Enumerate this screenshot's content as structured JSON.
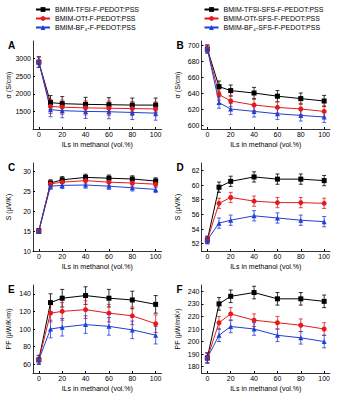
{
  "chart_data": [
    {
      "type": "line",
      "title": "A",
      "x_label": "ILs in methanol (vol.%)",
      "y_label": "σ (S/cm)",
      "x": [
        0,
        10,
        20,
        40,
        60,
        80,
        100
      ],
      "xlim": [
        -5,
        105
      ],
      "xticks": [
        0,
        20,
        40,
        60,
        80,
        100
      ],
      "ylim": [
        1000,
        3500
      ],
      "yticks": [
        1500,
        2000,
        2500,
        3000
      ],
      "grid": false,
      "series": [
        {
          "name": "BMIM-TFSI-F-PEDOT:PSS",
          "color": "#000000",
          "marker": "square",
          "line_style": "solid",
          "values": [
            2900,
            1750,
            1720,
            1700,
            1690,
            1680,
            1680
          ],
          "errors": [
            150,
            200,
            200,
            200,
            200,
            200,
            200
          ]
        },
        {
          "name": "BMIM-OTf-F-PEDOT:PSS",
          "color": "#e41a1c",
          "marker": "circle",
          "line_style": "solid",
          "values": [
            2900,
            1640,
            1620,
            1600,
            1590,
            1580,
            1570
          ],
          "errors": [
            150,
            200,
            200,
            200,
            200,
            200,
            200
          ]
        },
        {
          "name": "BMIM-BF₄-F-PEDOT:PSS",
          "color": "#1f3fd6",
          "marker": "triangle",
          "line_style": "solid",
          "values": [
            2900,
            1550,
            1520,
            1500,
            1490,
            1470,
            1450
          ],
          "errors": [
            150,
            200,
            200,
            200,
            200,
            200,
            200
          ]
        }
      ]
    },
    {
      "type": "line",
      "title": "B",
      "x_label": "ILs in methanol (vol.%)",
      "y_label": "σ (S/cm)",
      "x": [
        0,
        10,
        20,
        40,
        60,
        80,
        100
      ],
      "xlim": [
        -5,
        105
      ],
      "xticks": [
        0,
        20,
        40,
        60,
        80,
        100
      ],
      "ylim": [
        595,
        705
      ],
      "yticks": [
        600,
        620,
        640,
        660,
        680,
        700
      ],
      "grid": false,
      "series": [
        {
          "name": "BMIM-TFSI-SFS-F-PEDOT:PSS",
          "color": "#000000",
          "marker": "square",
          "line_style": "solid",
          "values": [
            695,
            648,
            643,
            640,
            636,
            633,
            630
          ],
          "errors": [
            5,
            7,
            7,
            7,
            7,
            7,
            7
          ]
        },
        {
          "name": "BMIM-OTf-SFS-F-PEDOT:PSS",
          "color": "#e41a1c",
          "marker": "circle",
          "line_style": "solid",
          "values": [
            695,
            638,
            630,
            625,
            622,
            620,
            617
          ],
          "errors": [
            5,
            7,
            7,
            7,
            7,
            7,
            7
          ]
        },
        {
          "name": "BMIM-BF₄-SFS-F-PEDOT:PSS",
          "color": "#1f3fd6",
          "marker": "triangle",
          "line_style": "solid",
          "values": [
            695,
            628,
            620,
            617,
            614,
            612,
            610
          ],
          "errors": [
            5,
            7,
            7,
            7,
            7,
            7,
            7
          ]
        }
      ]
    },
    {
      "type": "line",
      "title": "C",
      "x_label": "ILs in methanol (vol.%)",
      "y_label": "S (μV/K)",
      "x": [
        0,
        10,
        20,
        40,
        60,
        80,
        100
      ],
      "xlim": [
        -5,
        105
      ],
      "xticks": [
        0,
        20,
        40,
        60,
        80,
        100
      ],
      "ylim": [
        10,
        32
      ],
      "yticks": [
        10,
        15,
        20,
        25,
        30
      ],
      "grid": false,
      "series": [
        {
          "name": "BMIM-TFSI-F-PEDOT:PSS",
          "color": "#000000",
          "marker": "square",
          "line_style": "solid",
          "values": [
            15,
            27,
            27.8,
            28.4,
            28.2,
            28,
            27.5
          ],
          "errors": [
            0.6,
            0.8,
            0.8,
            0.8,
            0.8,
            0.8,
            0.8
          ]
        },
        {
          "name": "BMIM-OTf-F-PEDOT:PSS",
          "color": "#e41a1c",
          "marker": "circle",
          "line_style": "solid",
          "values": [
            15,
            26.8,
            27.2,
            27.6,
            27.2,
            27,
            26.7
          ],
          "errors": [
            0.6,
            0.8,
            0.8,
            0.8,
            0.8,
            0.8,
            0.8
          ]
        },
        {
          "name": "BMIM-BF₄-F-PEDOT:PSS",
          "color": "#1f3fd6",
          "marker": "triangle",
          "line_style": "solid",
          "values": [
            15,
            26.2,
            26.4,
            26.5,
            26.2,
            25.8,
            25.4
          ],
          "errors": [
            0.6,
            0.8,
            0.8,
            0.8,
            0.8,
            0.8,
            0.8
          ]
        }
      ]
    },
    {
      "type": "line",
      "title": "D",
      "x_label": "ILs in methanol (vol.%)",
      "y_label": "S (μV/K)",
      "x": [
        0,
        10,
        20,
        40,
        60,
        80,
        100
      ],
      "xlim": [
        -5,
        105
      ],
      "xticks": [
        0,
        20,
        40,
        60,
        80,
        100
      ],
      "ylim": [
        51,
        63
      ],
      "yticks": [
        52,
        54,
        56,
        58,
        60,
        62
      ],
      "grid": false,
      "series": [
        {
          "name": "BMIM-TFSI-SFS-F-PEDOT:PSS",
          "color": "#000000",
          "marker": "square",
          "line_style": "solid",
          "values": [
            52.5,
            59.7,
            60.5,
            61.1,
            60.8,
            60.8,
            60.6
          ],
          "errors": [
            0.5,
            0.7,
            0.7,
            0.7,
            0.7,
            0.7,
            0.7
          ]
        },
        {
          "name": "BMIM-OTf-SFS-F-PEDOT:PSS",
          "color": "#e41a1c",
          "marker": "circle",
          "line_style": "solid",
          "values": [
            52.5,
            57.5,
            58.3,
            57.8,
            57.6,
            57.6,
            57.5
          ],
          "errors": [
            0.5,
            0.7,
            0.7,
            0.7,
            0.7,
            0.7,
            0.7
          ]
        },
        {
          "name": "BMIM-BF₄-SFS-F-PEDOT:PSS",
          "color": "#1f3fd6",
          "marker": "triangle",
          "line_style": "solid",
          "values": [
            52.5,
            54.8,
            55.2,
            55.8,
            55.5,
            55.2,
            55
          ],
          "errors": [
            0.5,
            0.7,
            0.7,
            0.7,
            0.7,
            0.7,
            0.7
          ]
        }
      ]
    },
    {
      "type": "line",
      "title": "E",
      "x_label": "ILs in methanol (vol.%)",
      "y_label": "PF (μW/K²m)",
      "x": [
        0,
        10,
        20,
        40,
        60,
        80,
        100
      ],
      "xlim": [
        -5,
        105
      ],
      "xticks": [
        0,
        20,
        40,
        60,
        80,
        100
      ],
      "ylim": [
        50,
        150
      ],
      "yticks": [
        60,
        80,
        100,
        120,
        140
      ],
      "grid": false,
      "series": [
        {
          "name": "BMIM-TFSI-F-PEDOT:PSS",
          "color": "#000000",
          "marker": "square",
          "line_style": "solid",
          "values": [
            65,
            130,
            135,
            138,
            135,
            133,
            128
          ],
          "errors": [
            5,
            10,
            10,
            10,
            10,
            10,
            10
          ]
        },
        {
          "name": "BMIM-OTf-F-PEDOT:PSS",
          "color": "#e41a1c",
          "marker": "circle",
          "line_style": "solid",
          "values": [
            65,
            118,
            120,
            122,
            118,
            115,
            106
          ],
          "errors": [
            5,
            10,
            10,
            10,
            10,
            10,
            10
          ]
        },
        {
          "name": "BMIM-BF₄-F-PEDOT:PSS",
          "color": "#1f3fd6",
          "marker": "triangle",
          "line_style": "solid",
          "values": [
            65,
            100,
            102,
            105,
            103,
            99,
            93
          ],
          "errors": [
            5,
            10,
            10,
            10,
            10,
            10,
            10
          ]
        }
      ]
    },
    {
      "type": "line",
      "title": "F",
      "x_label": "ILs in methanol (vol.%)",
      "y_label": "PF (μW/mK²)",
      "x": [
        0,
        10,
        20,
        40,
        60,
        80,
        100
      ],
      "xlim": [
        -5,
        105
      ],
      "xticks": [
        0,
        20,
        40,
        60,
        80,
        100
      ],
      "ylim": [
        175,
        245
      ],
      "yticks": [
        180,
        190,
        200,
        210,
        220,
        230,
        240
      ],
      "grid": false,
      "series": [
        {
          "name": "BMIM-TFSI-SFS-F-PEDOT:PSS",
          "color": "#000000",
          "marker": "square",
          "line_style": "solid",
          "values": [
            187,
            230,
            236,
            239,
            234,
            234,
            232
          ],
          "errors": [
            4,
            5,
            5,
            5,
            5,
            5,
            5
          ]
        },
        {
          "name": "BMIM-OTf-SFS-F-PEDOT:PSS",
          "color": "#e41a1c",
          "marker": "circle",
          "line_style": "solid",
          "values": [
            187,
            215,
            222,
            217,
            215,
            213,
            210
          ],
          "errors": [
            4,
            5,
            5,
            5,
            5,
            5,
            5
          ]
        },
        {
          "name": "BMIM-BF₄-SFS-F-PEDOT:PSS",
          "color": "#1f3fd6",
          "marker": "triangle",
          "line_style": "solid",
          "values": [
            187,
            205,
            212,
            210,
            205,
            203,
            200
          ],
          "errors": [
            4,
            5,
            5,
            5,
            5,
            5,
            5
          ]
        }
      ]
    }
  ]
}
